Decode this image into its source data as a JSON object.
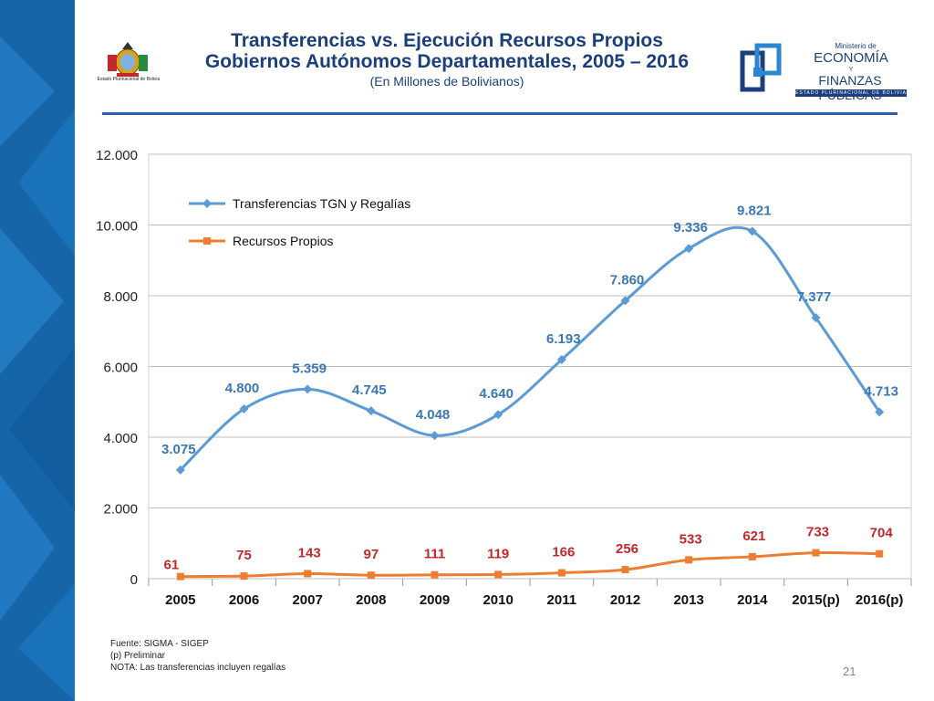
{
  "header": {
    "title_line1": "Transferencias vs. Ejecución Recursos Propios",
    "title_line2": "Gobiernos Autónomos Departamentales, 2005 – 2016",
    "subtitle": "(En Millones de Bolivianos)"
  },
  "logos": {
    "coat_label": "Estado Plurinacional de Bolivia",
    "ministry_line1": "Ministerio de",
    "ministry_line2": "ECONOMÍA",
    "ministry_line3": "Y",
    "ministry_line4": "FINANZAS PÚBLICAS",
    "ministry_line5": "ESTADO PLURINACIONAL DE BOLIVIA"
  },
  "colors": {
    "accent_blue": "#1565a8",
    "title_blue": "#1b3f7a",
    "series1": "#5b9bd5",
    "series1_label": "#3a78b5",
    "series2": "#ed7d31",
    "series2_label": "#c0282d"
  },
  "chart_data": {
    "type": "line",
    "categories": [
      "2005",
      "2006",
      "2007",
      "2008",
      "2009",
      "2010",
      "2011",
      "2012",
      "2013",
      "2014",
      "2015(p)",
      "2016(p)"
    ],
    "series": [
      {
        "name": "Transferencias TGN y Regalías",
        "values": [
          3075,
          4800,
          5359,
          4745,
          4048,
          4640,
          6193,
          7860,
          9336,
          9821,
          7377,
          4713
        ],
        "labels": [
          "3.075",
          "4.800",
          "5.359",
          "4.745",
          "4.048",
          "4.640",
          "6.193",
          "7.860",
          "9.336",
          "9.821",
          "7.377",
          "4.713"
        ],
        "color": "#5b9bd5",
        "marker": "diamond"
      },
      {
        "name": "Recursos Propios",
        "values": [
          61,
          75,
          143,
          97,
          111,
          119,
          166,
          256,
          533,
          621,
          733,
          704
        ],
        "labels": [
          "61",
          "75",
          "143",
          "97",
          "111",
          "119",
          "166",
          "256",
          "533",
          "621",
          "733",
          "704"
        ],
        "color": "#ed7d31",
        "marker": "square"
      }
    ],
    "ylim": [
      0,
      12000
    ],
    "yticks": [
      0,
      2000,
      4000,
      6000,
      8000,
      10000,
      12000
    ],
    "ytick_labels": [
      "0",
      "2.000",
      "4.000",
      "6.000",
      "8.000",
      "10.000",
      "12.000"
    ],
    "grid": true,
    "legend": "top-left"
  },
  "footer": {
    "source": "Fuente: SIGMA - SIGEP",
    "preliminary": "(p) Preliminar",
    "note": "NOTA: Las transferencias incluyen regalías"
  },
  "page_number": "21"
}
